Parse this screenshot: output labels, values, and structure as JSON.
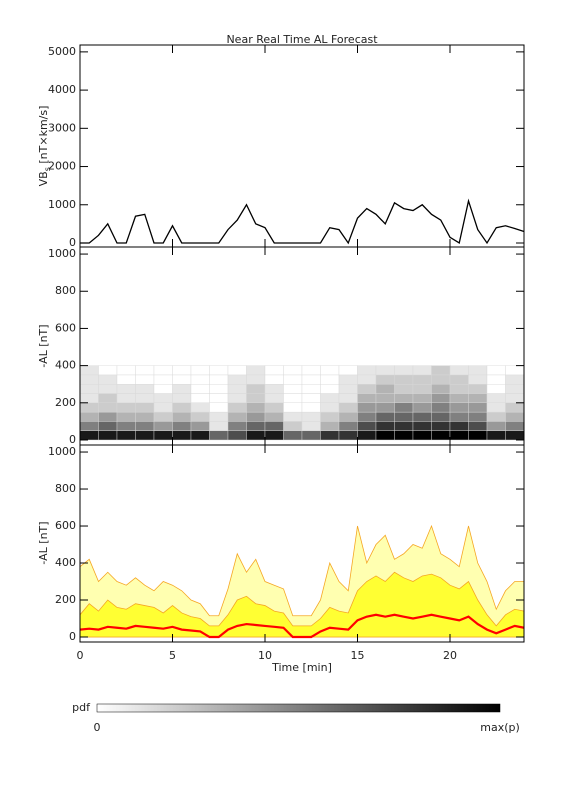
{
  "chart_data": [
    {
      "type": "line",
      "title": "Near Real Time AL Forecast",
      "ylabel": [
        "VB",
        "s",
        " [nT×km/s]"
      ],
      "xlim": [
        0,
        24
      ],
      "xticks": [
        0,
        5,
        10,
        15,
        20
      ],
      "ylim": [
        -105,
        5180
      ],
      "yticks": [
        0,
        1000,
        2000,
        3000,
        4000,
        5000
      ],
      "x": [
        0,
        0.5,
        1,
        1.5,
        2,
        2.5,
        3,
        3.5,
        4,
        4.5,
        5,
        5.5,
        6,
        6.5,
        7,
        7.5,
        8,
        8.5,
        9,
        9.5,
        10,
        10.5,
        11,
        11.5,
        12,
        12.5,
        13,
        13.5,
        14,
        14.5,
        15,
        15.5,
        16,
        16.5,
        17,
        17.5,
        18,
        18.5,
        19,
        19.5,
        20,
        20.5,
        21,
        21.5,
        22,
        22.5,
        23,
        23.5,
        24
      ],
      "series": [
        {
          "color": "#000000",
          "values": [
            0,
            0,
            200,
            500,
            0,
            0,
            700,
            750,
            0,
            0,
            450,
            0,
            0,
            0,
            0,
            0,
            350,
            600,
            1000,
            500,
            400,
            0,
            0,
            0,
            0,
            0,
            0,
            400,
            350,
            0,
            650,
            900,
            750,
            500,
            1050,
            900,
            850,
            1000,
            750,
            600,
            150,
            0,
            1100,
            350,
            0,
            400,
            450,
            380,
            300
          ]
        }
      ]
    },
    {
      "type": "heatmap",
      "ylabel": "-AL [nT]",
      "xlim": [
        0,
        24
      ],
      "xticks": [
        0,
        5,
        10,
        15,
        20
      ],
      "ylim": [
        -27,
        1038
      ],
      "yticks": [
        0,
        200,
        400,
        600,
        800,
        1000
      ],
      "x_edges": [
        0,
        1,
        2,
        3,
        4,
        5,
        6,
        7,
        8,
        9,
        10,
        11,
        12,
        13,
        14,
        15,
        16,
        17,
        18,
        19,
        20,
        21,
        22,
        23,
        24
      ],
      "y_edges": [
        0,
        50,
        100,
        150,
        200,
        250,
        300,
        350,
        400
      ],
      "z": [
        [
          0.9,
          0.9,
          0.9,
          0.9,
          0.9,
          0.9,
          0.9,
          0.6,
          0.7,
          0.9,
          0.9,
          0.6,
          0.6,
          0.8,
          0.8,
          0.9,
          1,
          1,
          1,
          1,
          1,
          1,
          0.9,
          0.9
        ],
        [
          0.5,
          0.6,
          0.5,
          0.5,
          0.4,
          0.5,
          0.4,
          0.1,
          0.5,
          0.6,
          0.6,
          0.2,
          0.1,
          0.3,
          0.5,
          0.7,
          0.8,
          0.8,
          0.8,
          0.8,
          0.8,
          0.7,
          0.4,
          0.5
        ],
        [
          0.3,
          0.4,
          0.3,
          0.3,
          0.2,
          0.3,
          0.2,
          0.1,
          0.3,
          0.4,
          0.3,
          0.1,
          0.1,
          0.2,
          0.3,
          0.5,
          0.6,
          0.6,
          0.6,
          0.6,
          0.5,
          0.5,
          0.2,
          0.3
        ],
        [
          0.2,
          0.2,
          0.2,
          0.2,
          0.1,
          0.2,
          0.1,
          0,
          0.2,
          0.3,
          0.2,
          0,
          0,
          0.1,
          0.2,
          0.4,
          0.4,
          0.5,
          0.4,
          0.5,
          0.4,
          0.4,
          0.1,
          0.2
        ],
        [
          0.1,
          0.2,
          0.1,
          0.1,
          0.1,
          0.1,
          0,
          0,
          0.1,
          0.2,
          0.1,
          0,
          0,
          0.1,
          0.1,
          0.3,
          0.3,
          0.3,
          0.3,
          0.4,
          0.3,
          0.3,
          0.1,
          0.1
        ],
        [
          0.1,
          0.1,
          0.1,
          0.1,
          0,
          0.1,
          0,
          0,
          0.1,
          0.2,
          0.1,
          0,
          0,
          0,
          0.1,
          0.2,
          0.3,
          0.2,
          0.2,
          0.3,
          0.2,
          0.2,
          0,
          0.1
        ],
        [
          0.1,
          0.1,
          0,
          0,
          0,
          0,
          0,
          0,
          0.1,
          0.1,
          0,
          0,
          0,
          0,
          0.1,
          0.1,
          0.2,
          0.2,
          0.2,
          0.2,
          0.2,
          0.1,
          0,
          0.1
        ],
        [
          0.1,
          0,
          0,
          0,
          0,
          0,
          0,
          0,
          0,
          0.1,
          0,
          0,
          0,
          0,
          0,
          0.1,
          0.1,
          0.1,
          0.1,
          0.2,
          0.1,
          0.1,
          0,
          0
        ]
      ]
    },
    {
      "type": "area",
      "ylabel": "-AL [nT]",
      "xlabel": "Time [min]",
      "xlim": [
        0,
        24
      ],
      "xticks": [
        0,
        5,
        10,
        15,
        20
      ],
      "ylim": [
        -27,
        1038
      ],
      "yticks": [
        0,
        200,
        400,
        600,
        800,
        1000
      ],
      "x": [
        0,
        0.5,
        1,
        1.5,
        2,
        2.5,
        3,
        3.5,
        4,
        4.5,
        5,
        5.5,
        6,
        6.5,
        7,
        7.5,
        8,
        8.5,
        9,
        9.5,
        10,
        10.5,
        11,
        11.5,
        12,
        12.5,
        13,
        13.5,
        14,
        14.5,
        15,
        15.5,
        16,
        16.5,
        17,
        17.5,
        18,
        18.5,
        19,
        19.5,
        20,
        20.5,
        21,
        21.5,
        22,
        22.5,
        23,
        23.5,
        24
      ],
      "series": [
        {
          "color": "#ffffb0",
          "edge": "#f5a623",
          "values": [
            380,
            420,
            300,
            350,
            300,
            280,
            320,
            280,
            250,
            300,
            280,
            250,
            200,
            180,
            115,
            115,
            260,
            450,
            350,
            420,
            300,
            280,
            260,
            115,
            115,
            115,
            200,
            400,
            300,
            250,
            600,
            400,
            500,
            550,
            420,
            450,
            500,
            480,
            600,
            450,
            420,
            380,
            600,
            400,
            300,
            150,
            250,
            300,
            300
          ]
        },
        {
          "color": "#ffff33",
          "edge": "#f5a623",
          "values": [
            120,
            180,
            140,
            200,
            160,
            150,
            180,
            170,
            160,
            130,
            170,
            130,
            110,
            100,
            60,
            60,
            120,
            200,
            220,
            180,
            170,
            140,
            130,
            60,
            60,
            60,
            100,
            160,
            140,
            130,
            250,
            300,
            330,
            300,
            350,
            320,
            300,
            330,
            340,
            320,
            280,
            260,
            300,
            200,
            120,
            60,
            120,
            150,
            140
          ]
        },
        {
          "color": "#ff0000",
          "values": [
            40,
            45,
            40,
            55,
            50,
            45,
            60,
            55,
            50,
            45,
            55,
            40,
            35,
            30,
            0,
            0,
            40,
            60,
            70,
            65,
            60,
            55,
            50,
            0,
            0,
            0,
            30,
            50,
            45,
            40,
            90,
            110,
            120,
            110,
            120,
            110,
            100,
            110,
            120,
            110,
            100,
            90,
            110,
            70,
            40,
            20,
            40,
            60,
            50
          ]
        }
      ]
    }
  ],
  "colorbar": {
    "label": "pdf",
    "min_label": 0,
    "max_label": "max(p)"
  }
}
